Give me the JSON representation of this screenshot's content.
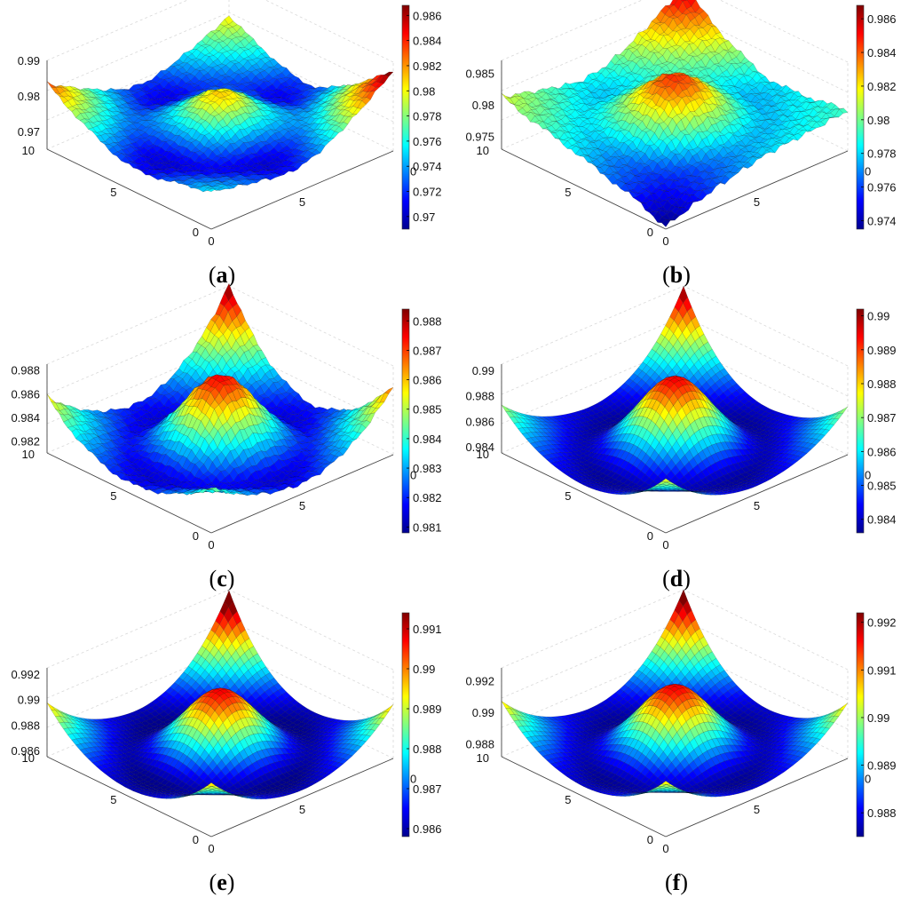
{
  "figure": {
    "colormap": "jet",
    "colormap_stops": [
      "#00008f",
      "#0000ff",
      "#0080ff",
      "#00ffff",
      "#80ff80",
      "#ffff00",
      "#ff8000",
      "#ff0000",
      "#800000"
    ]
  },
  "chart_data": [
    {
      "panel": "a",
      "caption_letter": "a",
      "type": "surface",
      "x_ticks": [
        "0",
        "5"
      ],
      "y_ticks": [
        "0",
        "5",
        "10"
      ],
      "z_ticks": [
        "0.97",
        "0.98",
        "0.99"
      ],
      "zlim": [
        0.965,
        0.99
      ],
      "colorbar_ticks": [
        "0.97",
        "0.972",
        "0.974",
        "0.976",
        "0.978",
        "0.98",
        "0.982",
        "0.984",
        "0.986"
      ],
      "colorbar_range": [
        0.969,
        0.9868
      ],
      "extra_label": "0",
      "surface": {
        "center": 0.981,
        "edge_mid": 0.97,
        "corners": [
          0.975,
          0.987,
          0.98,
          0.983
        ],
        "corner_sharpness": 1.0,
        "noise": 0.0006
      }
    },
    {
      "panel": "b",
      "caption_letter": "b",
      "type": "surface",
      "x_ticks": [
        "0",
        "5"
      ],
      "y_ticks": [
        "0",
        "5",
        "10"
      ],
      "z_ticks": [
        "0.975",
        "0.98",
        "0.985"
      ],
      "zlim": [
        0.973,
        0.987
      ],
      "colorbar_ticks": [
        "0.974",
        "0.976",
        "0.978",
        "0.98",
        "0.982",
        "0.984",
        "0.986"
      ],
      "colorbar_range": [
        0.9735,
        0.9868
      ],
      "extra_label": "0",
      "surface": {
        "center": 0.9845,
        "edge_mid": 0.9775,
        "corners": [
          0.973,
          0.979,
          0.986,
          0.981
        ],
        "corner_sharpness": 1.0,
        "noise": 0.0005
      }
    },
    {
      "panel": "c",
      "caption_letter": "c",
      "type": "surface",
      "x_ticks": [
        "0",
        "5"
      ],
      "y_ticks": [
        "0",
        "5",
        "10"
      ],
      "z_ticks": [
        "0.982",
        "0.984",
        "0.986",
        "0.988"
      ],
      "zlim": [
        0.981,
        0.9885
      ],
      "colorbar_ticks": [
        "0.981",
        "0.982",
        "0.983",
        "0.984",
        "0.985",
        "0.986",
        "0.987",
        "0.988"
      ],
      "colorbar_range": [
        0.9808,
        0.9884
      ],
      "extra_label": "0",
      "surface": {
        "center": 0.9875,
        "edge_mid": 0.9815,
        "corners": [
          0.9845,
          0.9865,
          0.9884,
          0.9855
        ],
        "corner_sharpness": 1.6,
        "noise": 0.0002
      }
    },
    {
      "panel": "d",
      "caption_letter": "d",
      "type": "surface",
      "x_ticks": [
        "0",
        "5"
      ],
      "y_ticks": [
        "0",
        "5",
        "10"
      ],
      "z_ticks": [
        "0.984",
        "0.986",
        "0.988",
        "0.99"
      ],
      "zlim": [
        0.9835,
        0.9905
      ],
      "colorbar_ticks": [
        "0.984",
        "0.985",
        "0.986",
        "0.987",
        "0.988",
        "0.989",
        "0.99"
      ],
      "colorbar_range": [
        0.9836,
        0.9902
      ],
      "extra_label": "0",
      "surface": {
        "center": 0.9895,
        "edge_mid": 0.9838,
        "corners": [
          0.9875,
          0.987,
          0.9902,
          0.987
        ],
        "corner_sharpness": 1.8,
        "noise": 0.0
      }
    },
    {
      "panel": "e",
      "caption_letter": "e",
      "type": "surface",
      "x_ticks": [
        "0",
        "5"
      ],
      "y_ticks": [
        "0",
        "5",
        "10"
      ],
      "z_ticks": [
        "0.986",
        "0.988",
        "0.99",
        "0.992"
      ],
      "zlim": [
        0.9855,
        0.9925
      ],
      "colorbar_ticks": [
        "0.986",
        "0.987",
        "0.988",
        "0.989",
        "0.99",
        "0.991"
      ],
      "colorbar_range": [
        0.9858,
        0.9914
      ],
      "extra_label": "0",
      "surface": {
        "center": 0.9908,
        "edge_mid": 0.9858,
        "corners": [
          0.9895,
          0.9895,
          0.9922,
          0.9895
        ],
        "corner_sharpness": 1.8,
        "noise": 0.0
      }
    },
    {
      "panel": "f",
      "caption_letter": "f",
      "type": "surface",
      "x_ticks": [
        "0",
        "5"
      ],
      "y_ticks": [
        "0",
        "5",
        "10"
      ],
      "z_ticks": [
        "0.988",
        "0.99",
        "0.992"
      ],
      "zlim": [
        0.9872,
        0.9928
      ],
      "colorbar_ticks": [
        "0.988",
        "0.989",
        "0.99",
        "0.991",
        "0.992"
      ],
      "colorbar_range": [
        0.9875,
        0.9922
      ],
      "extra_label": "0",
      "surface": {
        "center": 0.9917,
        "edge_mid": 0.9876,
        "corners": [
          0.9905,
          0.9905,
          0.9926,
          0.9905
        ],
        "corner_sharpness": 1.8,
        "noise": 0.0
      }
    }
  ]
}
